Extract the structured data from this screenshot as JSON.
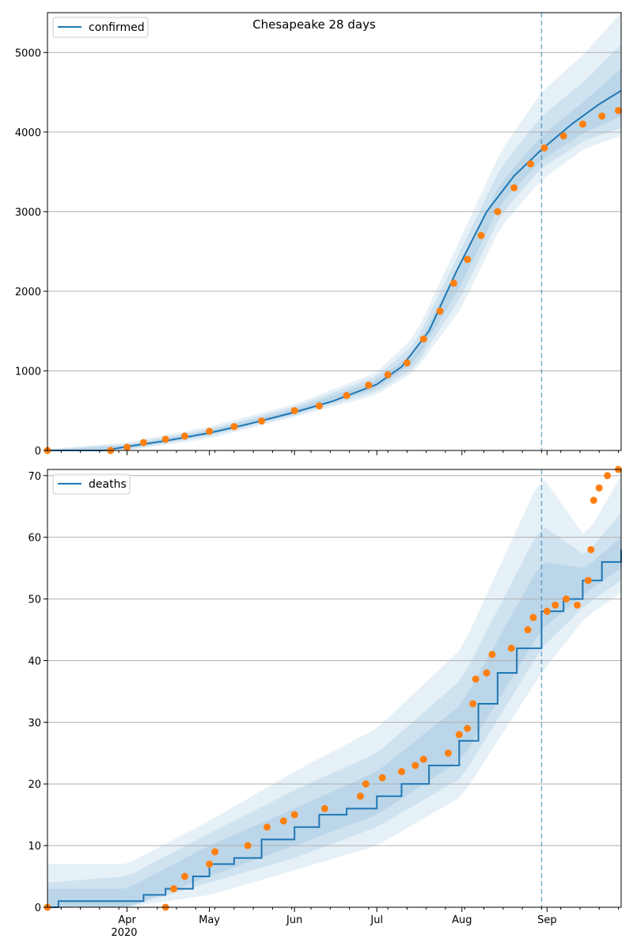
{
  "chart_data": [
    {
      "type": "line",
      "title": "Chesapeake 28 days",
      "xlabel": "",
      "ylabel": "",
      "x_range": [
        "2020-03-03",
        "2020-09-28"
      ],
      "ylim": [
        0,
        5500
      ],
      "yticks": [
        0,
        1000,
        2000,
        3000,
        4000,
        5000
      ],
      "grid": "horizontal",
      "legend": {
        "placement": "top-left",
        "entries": [
          "confirmed"
        ]
      },
      "forecast_start": "2020-08-30",
      "series": [
        {
          "name": "confirmed",
          "style": "line",
          "color": "#1f77b4",
          "points": [
            [
              "2020-03-03",
              0
            ],
            [
              "2020-03-24",
              0
            ],
            [
              "2020-04-01",
              50
            ],
            [
              "2020-04-15",
              120
            ],
            [
              "2020-05-01",
              220
            ],
            [
              "2020-05-15",
              330
            ],
            [
              "2020-06-01",
              480
            ],
            [
              "2020-06-15",
              620
            ],
            [
              "2020-07-01",
              830
            ],
            [
              "2020-07-10",
              1050
            ],
            [
              "2020-07-20",
              1500
            ],
            [
              "2020-07-30",
              2250
            ],
            [
              "2020-08-10",
              3000
            ],
            [
              "2020-08-20",
              3450
            ],
            [
              "2020-08-30",
              3780
            ],
            [
              "2020-09-10",
              4100
            ],
            [
              "2020-09-20",
              4350
            ],
            [
              "2020-09-28",
              4520
            ]
          ]
        },
        {
          "name": "observed",
          "style": "markers",
          "color": "#ff7f0e",
          "points": [
            [
              "2020-03-03",
              0
            ],
            [
              "2020-03-26",
              0
            ],
            [
              "2020-04-01",
              40
            ],
            [
              "2020-04-07",
              100
            ],
            [
              "2020-04-15",
              140
            ],
            [
              "2020-04-22",
              180
            ],
            [
              "2020-05-01",
              240
            ],
            [
              "2020-05-10",
              300
            ],
            [
              "2020-05-20",
              370
            ],
            [
              "2020-06-01",
              500
            ],
            [
              "2020-06-10",
              560
            ],
            [
              "2020-06-20",
              690
            ],
            [
              "2020-06-28",
              820
            ],
            [
              "2020-07-05",
              950
            ],
            [
              "2020-07-12",
              1100
            ],
            [
              "2020-07-18",
              1400
            ],
            [
              "2020-07-24",
              1750
            ],
            [
              "2020-07-29",
              2100
            ],
            [
              "2020-08-03",
              2400
            ],
            [
              "2020-08-08",
              2700
            ],
            [
              "2020-08-14",
              3000
            ],
            [
              "2020-08-20",
              3300
            ],
            [
              "2020-08-26",
              3600
            ],
            [
              "2020-08-31",
              3800
            ],
            [
              "2020-09-07",
              3950
            ],
            [
              "2020-09-14",
              4100
            ],
            [
              "2020-09-21",
              4200
            ],
            [
              "2020-09-27",
              4270
            ]
          ]
        }
      ],
      "bands": [
        {
          "level": "outer",
          "lower": [
            [
              "2020-03-03",
              0
            ],
            [
              "2020-04-01",
              0
            ],
            [
              "2020-05-01",
              150
            ],
            [
              "2020-06-01",
              420
            ],
            [
              "2020-07-01",
              700
            ],
            [
              "2020-07-15",
              1000
            ],
            [
              "2020-08-01",
              1800
            ],
            [
              "2020-08-15",
              2800
            ],
            [
              "2020-08-30",
              3400
            ],
            [
              "2020-09-15",
              3800
            ],
            [
              "2020-09-28",
              3950
            ]
          ],
          "upper": [
            [
              "2020-03-03",
              20
            ],
            [
              "2020-04-01",
              100
            ],
            [
              "2020-05-01",
              300
            ],
            [
              "2020-06-01",
              580
            ],
            [
              "2020-07-01",
              980
            ],
            [
              "2020-07-15",
              1450
            ],
            [
              "2020-08-01",
              2700
            ],
            [
              "2020-08-15",
              3750
            ],
            [
              "2020-08-30",
              4500
            ],
            [
              "2020-09-15",
              5000
            ],
            [
              "2020-09-28",
              5500
            ]
          ]
        },
        {
          "level": "mid",
          "lower": [
            [
              "2020-03-03",
              0
            ],
            [
              "2020-04-01",
              10
            ],
            [
              "2020-05-01",
              180
            ],
            [
              "2020-06-01",
              440
            ],
            [
              "2020-07-01",
              740
            ],
            [
              "2020-07-15",
              1050
            ],
            [
              "2020-08-01",
              1950
            ],
            [
              "2020-08-15",
              2950
            ],
            [
              "2020-08-30",
              3550
            ],
            [
              "2020-09-15",
              3900
            ],
            [
              "2020-09-28",
              4050
            ]
          ],
          "upper": [
            [
              "2020-03-03",
              10
            ],
            [
              "2020-04-01",
              80
            ],
            [
              "2020-05-01",
              270
            ],
            [
              "2020-06-01",
              550
            ],
            [
              "2020-07-01",
              930
            ],
            [
              "2020-07-15",
              1350
            ],
            [
              "2020-08-01",
              2550
            ],
            [
              "2020-08-15",
              3550
            ],
            [
              "2020-08-30",
              4200
            ],
            [
              "2020-09-15",
              4650
            ],
            [
              "2020-09-28",
              5100
            ]
          ]
        },
        {
          "level": "inner",
          "lower": [
            [
              "2020-03-03",
              0
            ],
            [
              "2020-04-01",
              20
            ],
            [
              "2020-05-01",
              200
            ],
            [
              "2020-06-01",
              460
            ],
            [
              "2020-07-01",
              780
            ],
            [
              "2020-07-15",
              1120
            ],
            [
              "2020-08-01",
              2100
            ],
            [
              "2020-08-15",
              3100
            ],
            [
              "2020-08-30",
              3650
            ],
            [
              "2020-09-15",
              4000
            ],
            [
              "2020-09-28",
              4200
            ]
          ],
          "upper": [
            [
              "2020-03-03",
              5
            ],
            [
              "2020-04-01",
              60
            ],
            [
              "2020-05-01",
              250
            ],
            [
              "2020-06-01",
              520
            ],
            [
              "2020-07-01",
              880
            ],
            [
              "2020-07-15",
              1250
            ],
            [
              "2020-08-01",
              2400
            ],
            [
              "2020-08-15",
              3350
            ],
            [
              "2020-08-30",
              3950
            ],
            [
              "2020-09-15",
              4400
            ],
            [
              "2020-09-28",
              4800
            ]
          ]
        }
      ]
    },
    {
      "type": "line",
      "title": "",
      "xlabel": "",
      "ylabel": "",
      "x_range": [
        "2020-03-03",
        "2020-09-28"
      ],
      "ylim": [
        0,
        71
      ],
      "yticks": [
        0,
        10,
        20,
        30,
        40,
        50,
        60,
        70
      ],
      "xticks": [
        "Apr",
        "May",
        "Jun",
        "Jul",
        "Aug",
        "Sep"
      ],
      "xtick_year": "2020",
      "grid": "horizontal",
      "legend": {
        "placement": "top-left",
        "entries": [
          "deaths"
        ]
      },
      "forecast_start": "2020-08-30",
      "series": [
        {
          "name": "deaths",
          "style": "step",
          "color": "#1f77b4",
          "points": [
            [
              "2020-03-03",
              0
            ],
            [
              "2020-03-07",
              1
            ],
            [
              "2020-04-01",
              1
            ],
            [
              "2020-04-07",
              2
            ],
            [
              "2020-04-15",
              3
            ],
            [
              "2020-04-25",
              5
            ],
            [
              "2020-05-01",
              7
            ],
            [
              "2020-05-10",
              8
            ],
            [
              "2020-05-20",
              11
            ],
            [
              "2020-06-01",
              13
            ],
            [
              "2020-06-10",
              15
            ],
            [
              "2020-06-20",
              16
            ],
            [
              "2020-07-01",
              18
            ],
            [
              "2020-07-10",
              20
            ],
            [
              "2020-07-20",
              23
            ],
            [
              "2020-07-31",
              27
            ],
            [
              "2020-08-07",
              33
            ],
            [
              "2020-08-14",
              38
            ],
            [
              "2020-08-21",
              42
            ],
            [
              "2020-08-30",
              48
            ],
            [
              "2020-09-07",
              50
            ],
            [
              "2020-09-14",
              53
            ],
            [
              "2020-09-21",
              56
            ],
            [
              "2020-09-28",
              58
            ]
          ]
        },
        {
          "name": "observed",
          "style": "markers",
          "color": "#ff7f0e",
          "points": [
            [
              "2020-03-03",
              0
            ],
            [
              "2020-04-15",
              0
            ],
            [
              "2020-04-18",
              3
            ],
            [
              "2020-04-22",
              5
            ],
            [
              "2020-05-01",
              7
            ],
            [
              "2020-05-03",
              9
            ],
            [
              "2020-05-15",
              10
            ],
            [
              "2020-05-22",
              13
            ],
            [
              "2020-05-28",
              14
            ],
            [
              "2020-06-01",
              15
            ],
            [
              "2020-06-12",
              16
            ],
            [
              "2020-06-25",
              18
            ],
            [
              "2020-06-27",
              20
            ],
            [
              "2020-07-03",
              21
            ],
            [
              "2020-07-10",
              22
            ],
            [
              "2020-07-15",
              23
            ],
            [
              "2020-07-18",
              24
            ],
            [
              "2020-07-27",
              25
            ],
            [
              "2020-07-31",
              28
            ],
            [
              "2020-08-03",
              29
            ],
            [
              "2020-08-05",
              33
            ],
            [
              "2020-08-06",
              37
            ],
            [
              "2020-08-10",
              38
            ],
            [
              "2020-08-12",
              41
            ],
            [
              "2020-08-19",
              42
            ],
            [
              "2020-08-25",
              45
            ],
            [
              "2020-08-27",
              47
            ],
            [
              "2020-09-01",
              48
            ],
            [
              "2020-09-04",
              49
            ],
            [
              "2020-09-08",
              50
            ],
            [
              "2020-09-12",
              49
            ],
            [
              "2020-09-16",
              53
            ],
            [
              "2020-09-17",
              58
            ],
            [
              "2020-09-18",
              66
            ],
            [
              "2020-09-20",
              68
            ],
            [
              "2020-09-23",
              70
            ],
            [
              "2020-09-27",
              71
            ]
          ]
        }
      ],
      "bands": [
        {
          "level": "outer",
          "lower": [
            [
              "2020-03-03",
              0
            ],
            [
              "2020-04-01",
              0
            ],
            [
              "2020-05-01",
              2
            ],
            [
              "2020-06-01",
              6
            ],
            [
              "2020-07-01",
              10
            ],
            [
              "2020-08-01",
              18
            ],
            [
              "2020-08-30",
              38
            ],
            [
              "2020-09-15",
              47
            ],
            [
              "2020-09-28",
              51
            ]
          ],
          "upper": [
            [
              "2020-03-03",
              7
            ],
            [
              "2020-04-01",
              7
            ],
            [
              "2020-05-01",
              14
            ],
            [
              "2020-06-01",
              22
            ],
            [
              "2020-07-01",
              29
            ],
            [
              "2020-08-01",
              42
            ],
            [
              "2020-08-30",
              70
            ],
            [
              "2020-09-15",
              60
            ],
            [
              "2020-09-28",
              70
            ]
          ]
        },
        {
          "level": "mid",
          "lower": [
            [
              "2020-03-03",
              0
            ],
            [
              "2020-04-01",
              0
            ],
            [
              "2020-05-01",
              4
            ],
            [
              "2020-06-01",
              8
            ],
            [
              "2020-07-01",
              13
            ],
            [
              "2020-08-01",
              21
            ],
            [
              "2020-08-30",
              42
            ],
            [
              "2020-09-15",
              49
            ],
            [
              "2020-09-28",
              53
            ]
          ],
          "upper": [
            [
              "2020-03-03",
              4
            ],
            [
              "2020-04-01",
              5
            ],
            [
              "2020-05-01",
              12
            ],
            [
              "2020-06-01",
              19
            ],
            [
              "2020-07-01",
              25
            ],
            [
              "2020-08-01",
              37
            ],
            [
              "2020-08-30",
              62
            ],
            [
              "2020-09-15",
              57
            ],
            [
              "2020-09-28",
              64
            ]
          ]
        },
        {
          "level": "inner",
          "lower": [
            [
              "2020-03-03",
              0
            ],
            [
              "2020-04-01",
              0
            ],
            [
              "2020-05-01",
              5
            ],
            [
              "2020-06-01",
              10
            ],
            [
              "2020-07-01",
              15
            ],
            [
              "2020-08-01",
              24
            ],
            [
              "2020-08-30",
              45
            ],
            [
              "2020-09-15",
              51
            ],
            [
              "2020-09-28",
              55
            ]
          ],
          "upper": [
            [
              "2020-03-03",
              3
            ],
            [
              "2020-04-01",
              3
            ],
            [
              "2020-05-01",
              10
            ],
            [
              "2020-06-01",
              16
            ],
            [
              "2020-07-01",
              22
            ],
            [
              "2020-08-01",
              33
            ],
            [
              "2020-08-30",
              56
            ],
            [
              "2020-09-15",
              55
            ],
            [
              "2020-09-28",
              60
            ]
          ]
        }
      ]
    }
  ],
  "colors": {
    "line": "#1f77b4",
    "observed": "#ff7f0e",
    "band": "#1f77b4",
    "grid": "#b0b0b0"
  }
}
